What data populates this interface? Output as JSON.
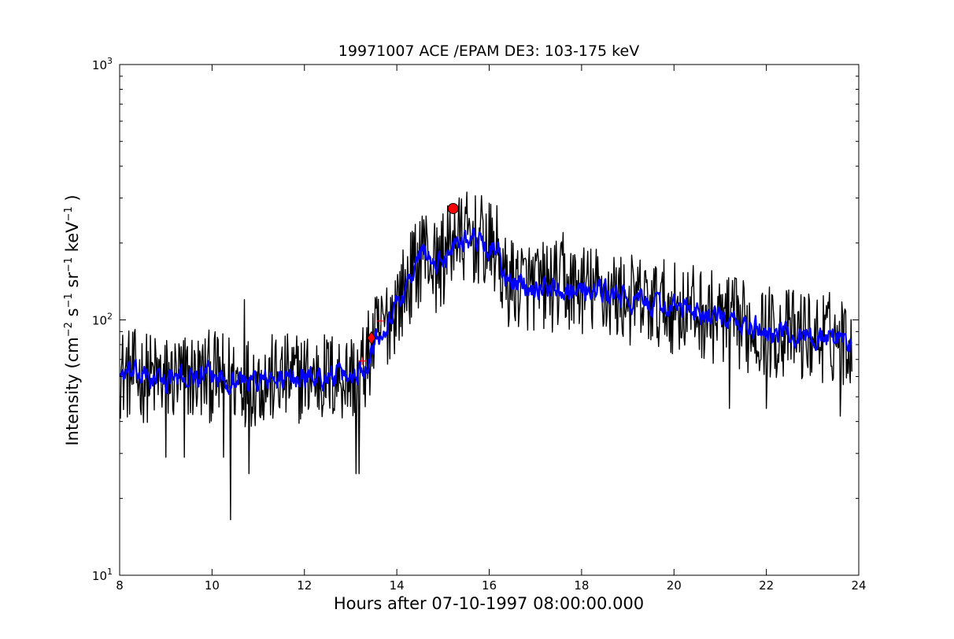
{
  "chart_data": {
    "type": "line",
    "title": "19971007 ACE /EPAM DE3: 103-175 keV",
    "xlabel": "Hours after 07-10-1997 08:00:00.000",
    "ylabel": {
      "prefix": "Intensity (cm",
      "exp1": "−2",
      "s": " s",
      "exp2": "−1",
      "sr": " sr",
      "exp3": "−1",
      "kev": " keV",
      "exp4": "−1",
      "suffix": " )"
    },
    "xlim": [
      8,
      24
    ],
    "ylim": [
      10,
      1000
    ],
    "yscale": "log",
    "xticks": [
      8,
      10,
      12,
      14,
      16,
      18,
      20,
      22,
      24
    ],
    "yticks": [
      {
        "value": 10,
        "base": "10",
        "exp": "1"
      },
      {
        "value": 100,
        "base": "10",
        "exp": "2"
      },
      {
        "value": 1000,
        "base": "10",
        "exp": "3"
      }
    ],
    "grid": false,
    "series": [
      {
        "color": "#000000",
        "style": "raw",
        "anchors": [
          [
            8.0,
            62
          ],
          [
            8.5,
            60
          ],
          [
            9.0,
            58
          ],
          [
            9.5,
            60
          ],
          [
            10.0,
            60
          ],
          [
            10.5,
            58
          ],
          [
            11.0,
            58
          ],
          [
            11.5,
            58
          ],
          [
            12.0,
            60
          ],
          [
            12.5,
            60
          ],
          [
            13.0,
            60
          ],
          [
            13.3,
            65
          ],
          [
            13.5,
            82
          ],
          [
            13.8,
            100
          ],
          [
            14.1,
            125
          ],
          [
            14.4,
            160
          ],
          [
            14.6,
            190
          ],
          [
            14.85,
            160
          ],
          [
            15.0,
            170
          ],
          [
            15.2,
            200
          ],
          [
            15.5,
            210
          ],
          [
            15.8,
            205
          ],
          [
            16.0,
            190
          ],
          [
            16.2,
            185
          ],
          [
            16.3,
            140
          ],
          [
            16.6,
            140
          ],
          [
            17.0,
            135
          ],
          [
            17.5,
            135
          ],
          [
            18.0,
            132
          ],
          [
            18.5,
            128
          ],
          [
            19.0,
            120
          ],
          [
            19.5,
            115
          ],
          [
            20.0,
            112
          ],
          [
            20.5,
            108
          ],
          [
            21.0,
            100
          ],
          [
            21.5,
            95
          ],
          [
            22.0,
            90
          ],
          [
            22.5,
            88
          ],
          [
            23.0,
            86
          ],
          [
            23.5,
            85
          ],
          [
            23.85,
            82
          ]
        ],
        "noise": 0.42,
        "spikes": [
          [
            10.4,
            16.5
          ],
          [
            13.12,
            25
          ],
          [
            13.18,
            25
          ],
          [
            10.8,
            25
          ],
          [
            9.0,
            29
          ],
          [
            9.4,
            29
          ],
          [
            10.25,
            29
          ],
          [
            15.25,
            270
          ],
          [
            15.0,
            260
          ],
          [
            14.55,
            255
          ],
          [
            10.7,
            120
          ],
          [
            17.6,
            220
          ],
          [
            21.2,
            45
          ],
          [
            22.0,
            45
          ],
          [
            23.6,
            42
          ]
        ]
      },
      {
        "color": "#0000ff",
        "style": "smoothed",
        "anchors": [
          [
            8.0,
            62
          ],
          [
            8.5,
            60
          ],
          [
            9.0,
            58
          ],
          [
            9.5,
            60
          ],
          [
            10.0,
            60
          ],
          [
            10.5,
            58
          ],
          [
            11.0,
            58
          ],
          [
            11.5,
            58
          ],
          [
            12.0,
            60
          ],
          [
            12.5,
            60
          ],
          [
            13.0,
            60
          ],
          [
            13.3,
            65
          ],
          [
            13.5,
            82
          ],
          [
            13.8,
            100
          ],
          [
            14.1,
            125
          ],
          [
            14.4,
            160
          ],
          [
            14.6,
            190
          ],
          [
            14.85,
            160
          ],
          [
            15.0,
            170
          ],
          [
            15.2,
            200
          ],
          [
            15.5,
            210
          ],
          [
            15.8,
            205
          ],
          [
            16.0,
            190
          ],
          [
            16.2,
            185
          ],
          [
            16.3,
            140
          ],
          [
            16.6,
            140
          ],
          [
            17.0,
            135
          ],
          [
            17.5,
            135
          ],
          [
            18.0,
            132
          ],
          [
            18.5,
            128
          ],
          [
            19.0,
            120
          ],
          [
            19.5,
            115
          ],
          [
            20.0,
            112
          ],
          [
            20.5,
            108
          ],
          [
            21.0,
            100
          ],
          [
            21.5,
            95
          ],
          [
            22.0,
            90
          ],
          [
            22.5,
            88
          ],
          [
            23.0,
            86
          ],
          [
            23.5,
            85
          ],
          [
            23.85,
            82
          ]
        ],
        "noise": 0.18
      }
    ],
    "markers": [
      {
        "shape": "circle",
        "x": 15.22,
        "y": 273,
        "color": "#ff0000"
      },
      {
        "shape": "diamond",
        "x": 13.45,
        "y": 85,
        "color": "#ff0000"
      },
      {
        "shape": "plus",
        "x": 13.25,
        "y": 69,
        "color": "#ff0000"
      },
      {
        "shape": "plus",
        "x": 13.65,
        "y": 99,
        "color": "#ff0000"
      }
    ]
  }
}
